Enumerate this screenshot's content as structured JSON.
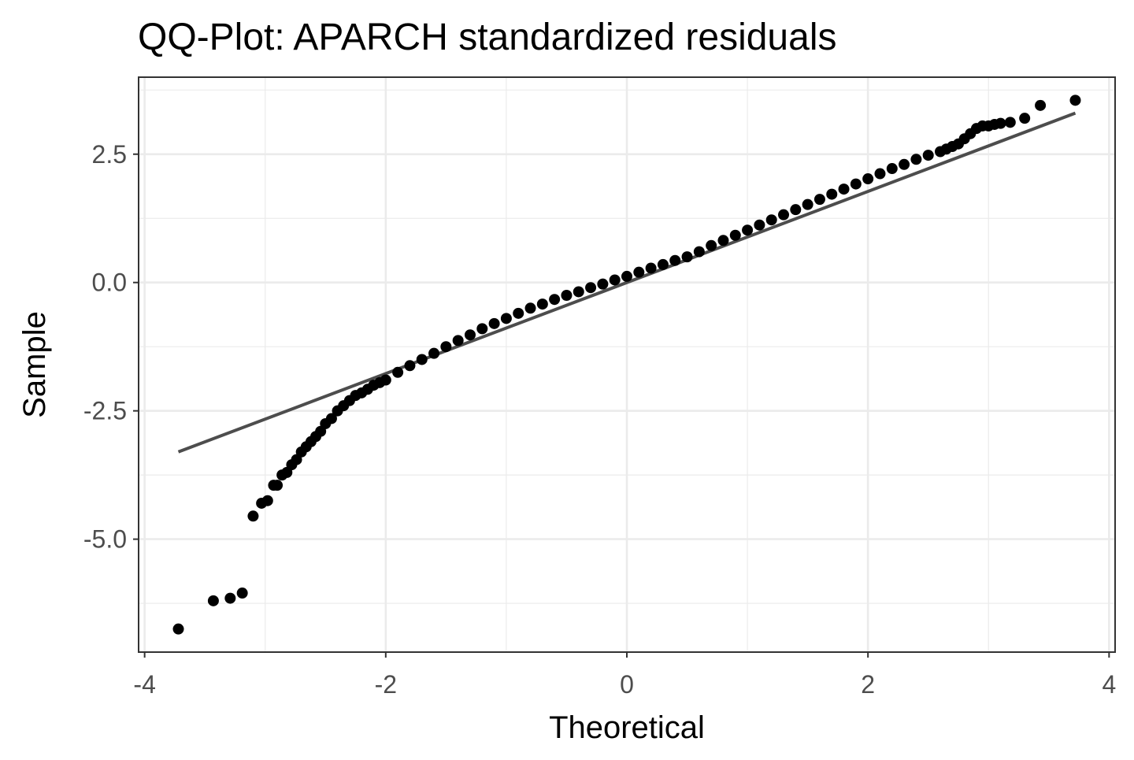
{
  "chart_data": {
    "type": "scatter",
    "title": "QQ-Plot: APARCH standardized residuals",
    "xlabel": "Theoretical",
    "ylabel": "Sample",
    "xlim": [
      -4.05,
      4.05
    ],
    "ylim": [
      -7.2,
      4.0
    ],
    "x_ticks": [
      {
        "value": -4,
        "label": "-4"
      },
      {
        "value": -2,
        "label": "-2"
      },
      {
        "value": 0,
        "label": "0"
      },
      {
        "value": 2,
        "label": "2"
      },
      {
        "value": 4,
        "label": "4"
      }
    ],
    "y_ticks": [
      {
        "value": 2.5,
        "label": "2.5"
      },
      {
        "value": 0,
        "label": "0.0"
      },
      {
        "value": -2.5,
        "label": "-2.5"
      },
      {
        "value": -5,
        "label": "-5.0"
      }
    ],
    "x_minor_gridlines": [
      -3,
      -1,
      1,
      3
    ],
    "y_minor_gridlines": [
      3.75,
      1.25,
      -1.25,
      -3.75,
      -6.25
    ],
    "grid": true,
    "point_color": "#000000",
    "line_color": "#4d4d4d",
    "reference_line": {
      "name": "qq-line",
      "x": [
        -3.72,
        3.72
      ],
      "y": [
        -3.3,
        3.3
      ]
    },
    "series": [
      {
        "name": "sample-quantiles",
        "x": [
          -3.72,
          -3.43,
          -3.29,
          -3.19,
          -3.1,
          -3.03,
          -2.98,
          -2.93,
          -2.9,
          -2.86,
          -2.82,
          -2.78,
          -2.74,
          -2.7,
          -2.66,
          -2.62,
          -2.58,
          -2.54,
          -2.5,
          -2.45,
          -2.4,
          -2.35,
          -2.3,
          -2.25,
          -2.2,
          -2.15,
          -2.1,
          -2.05,
          -2.0,
          -1.9,
          -1.8,
          -1.7,
          -1.6,
          -1.5,
          -1.4,
          -1.3,
          -1.2,
          -1.1,
          -1.0,
          -0.9,
          -0.8,
          -0.7,
          -0.6,
          -0.5,
          -0.4,
          -0.3,
          -0.2,
          -0.1,
          0.0,
          0.1,
          0.2,
          0.3,
          0.4,
          0.5,
          0.6,
          0.7,
          0.8,
          0.9,
          1.0,
          1.1,
          1.2,
          1.3,
          1.4,
          1.5,
          1.6,
          1.7,
          1.8,
          1.9,
          2.0,
          2.1,
          2.2,
          2.3,
          2.4,
          2.5,
          2.6,
          2.65,
          2.7,
          2.75,
          2.8,
          2.85,
          2.9,
          2.95,
          3.0,
          3.05,
          3.1,
          3.18,
          3.3,
          3.43,
          3.72
        ],
        "y": [
          -6.75,
          -6.2,
          -6.15,
          -6.05,
          -4.55,
          -4.3,
          -4.25,
          -3.95,
          -3.95,
          -3.75,
          -3.7,
          -3.55,
          -3.45,
          -3.3,
          -3.2,
          -3.1,
          -3.0,
          -2.9,
          -2.75,
          -2.65,
          -2.5,
          -2.4,
          -2.3,
          -2.2,
          -2.15,
          -2.08,
          -2.0,
          -1.95,
          -1.9,
          -1.75,
          -1.62,
          -1.5,
          -1.38,
          -1.25,
          -1.13,
          -1.02,
          -0.9,
          -0.8,
          -0.7,
          -0.6,
          -0.5,
          -0.42,
          -0.33,
          -0.25,
          -0.18,
          -0.1,
          -0.03,
          0.05,
          0.12,
          0.2,
          0.28,
          0.35,
          0.43,
          0.5,
          0.6,
          0.72,
          0.82,
          0.92,
          1.02,
          1.12,
          1.22,
          1.32,
          1.42,
          1.52,
          1.62,
          1.72,
          1.82,
          1.92,
          2.02,
          2.12,
          2.22,
          2.3,
          2.4,
          2.48,
          2.55,
          2.6,
          2.65,
          2.7,
          2.8,
          2.9,
          3.0,
          3.05,
          3.05,
          3.08,
          3.1,
          3.12,
          3.2,
          3.45,
          3.55
        ]
      }
    ]
  }
}
